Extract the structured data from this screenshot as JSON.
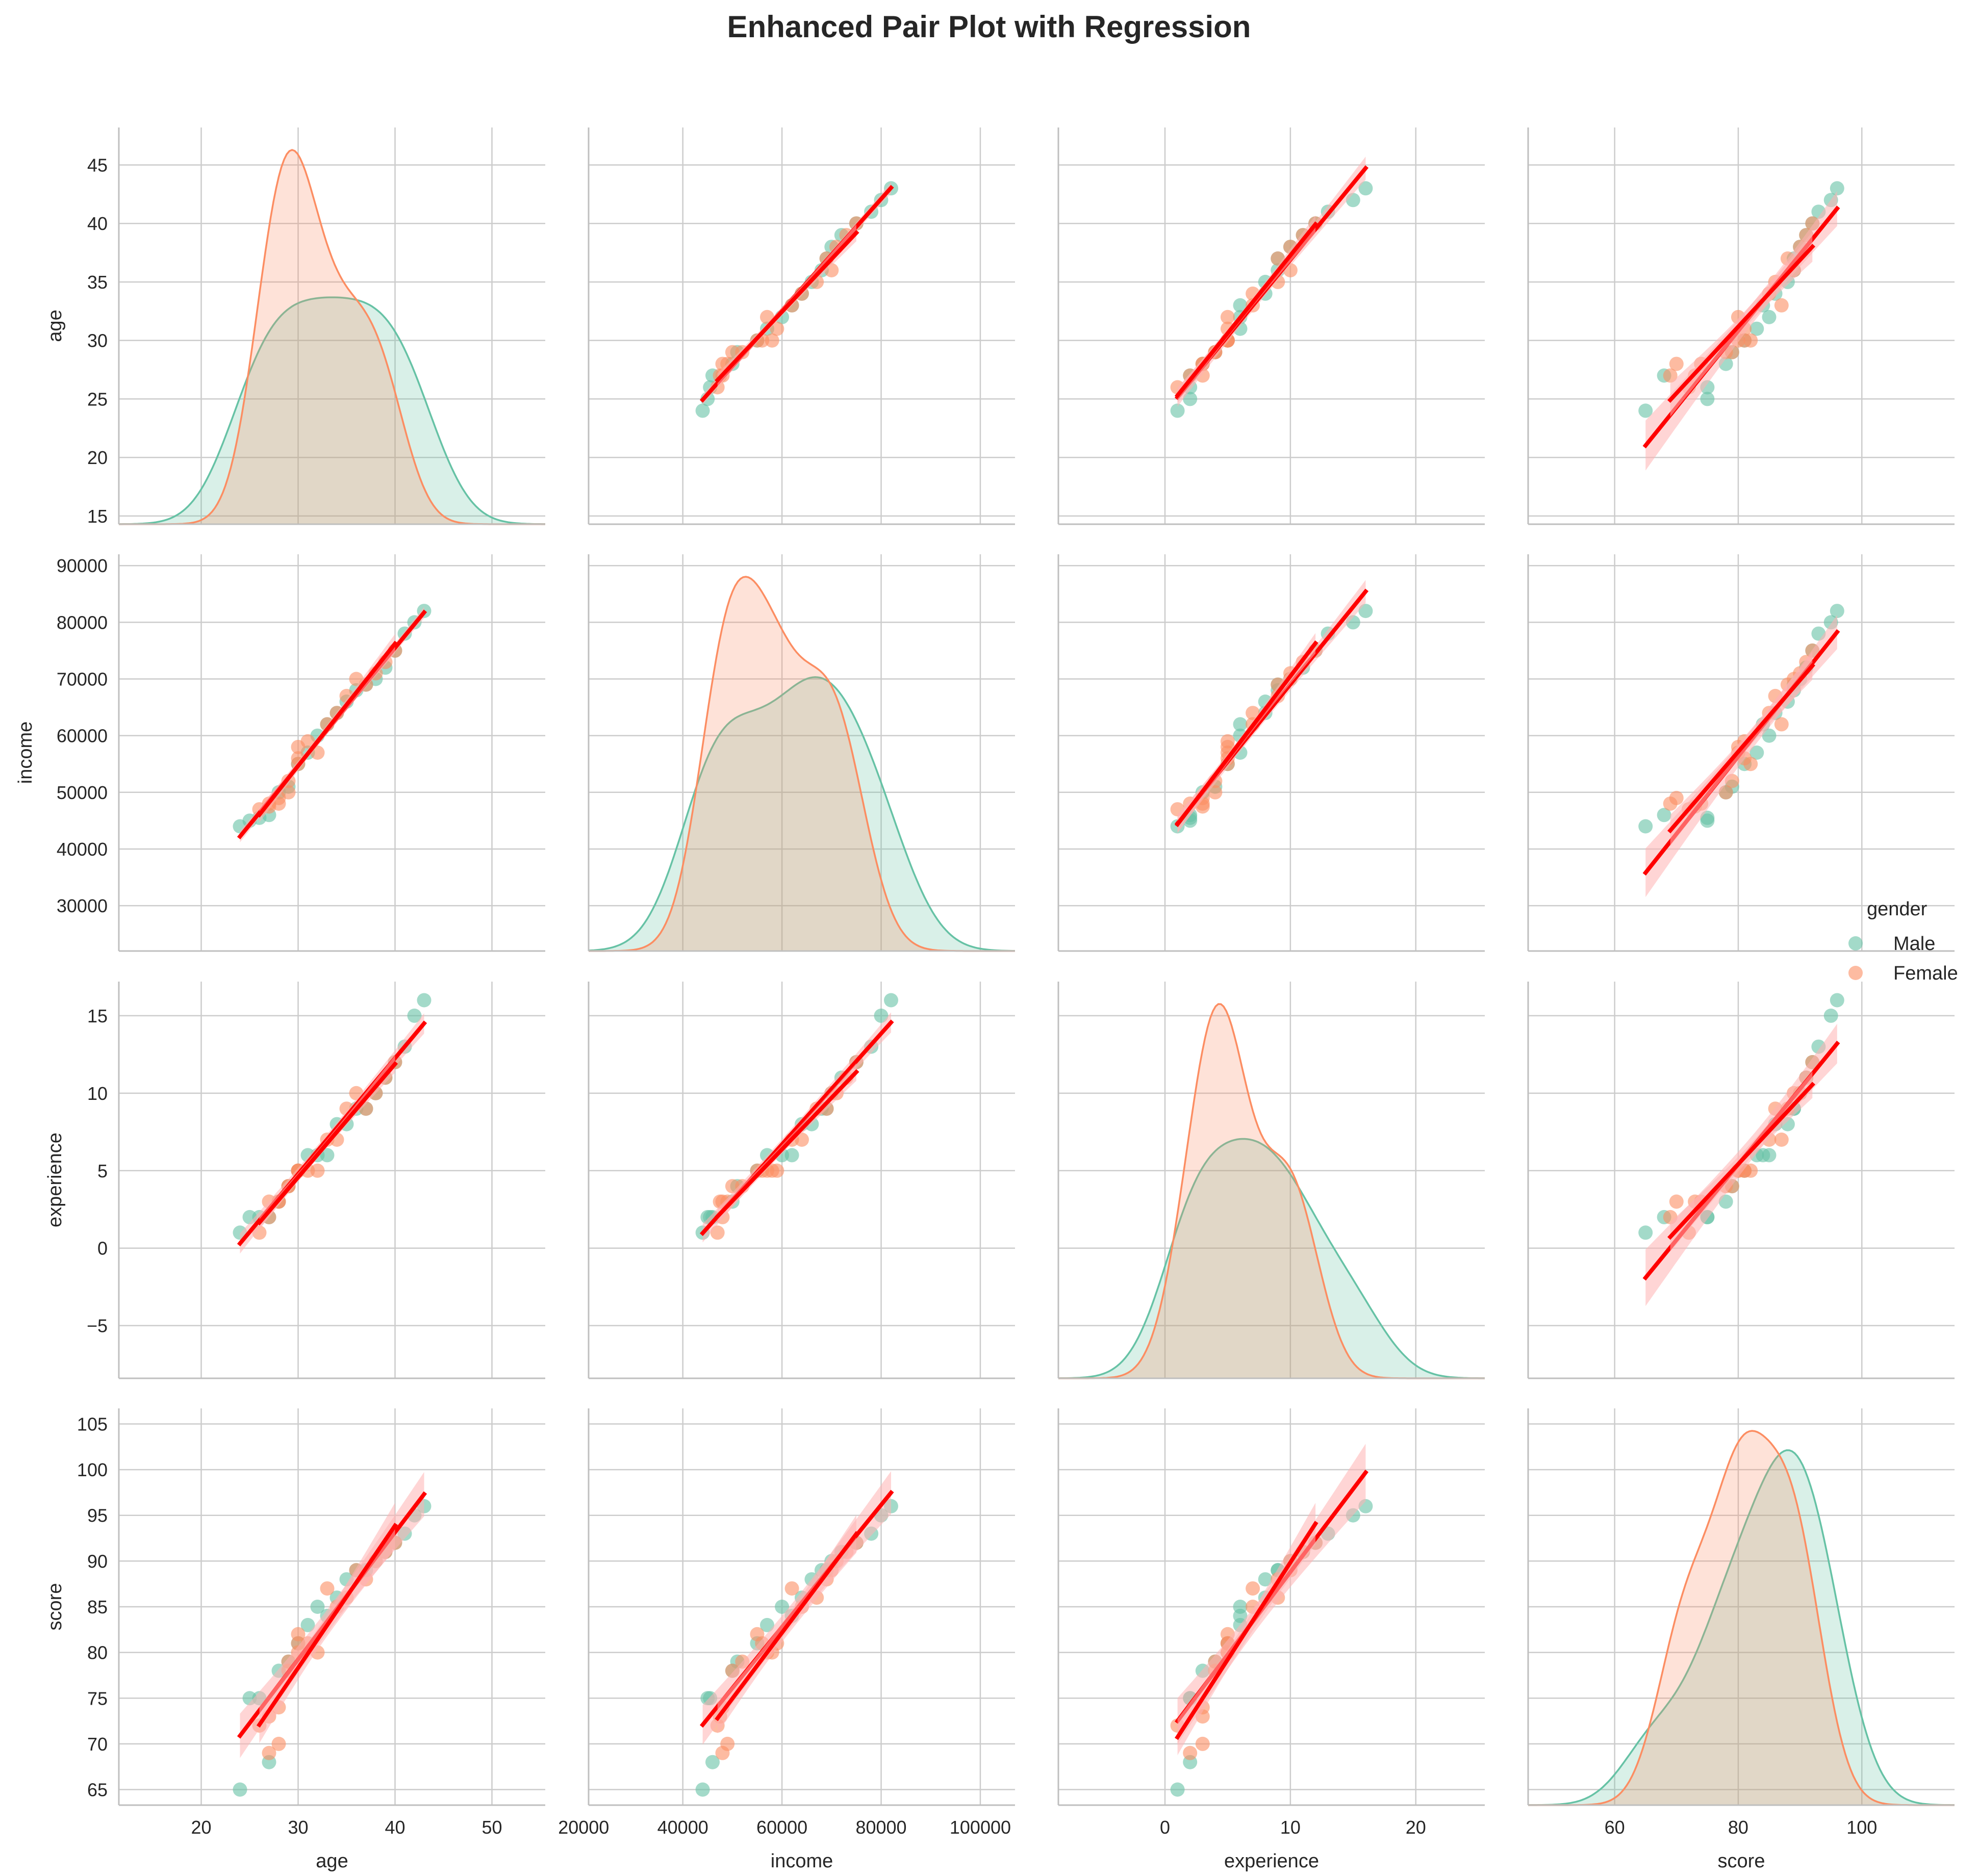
{
  "title": "Enhanced Pair Plot with Regression",
  "chart_data": {
    "type": "scatter",
    "kind": "pairplot",
    "variables": [
      "age",
      "income",
      "experience",
      "score"
    ],
    "axis_ticks": {
      "age": [
        20,
        30,
        40,
        50
      ],
      "income": [
        20000,
        40000,
        60000,
        80000,
        100000
      ],
      "experience": [
        0,
        10,
        20
      ],
      "score": [
        60,
        80,
        100
      ]
    },
    "y_axis_ticks": {
      "age": [
        15,
        20,
        25,
        30,
        35,
        40,
        45
      ],
      "income": [
        30000,
        40000,
        50000,
        60000,
        70000,
        80000,
        90000
      ],
      "experience": [
        -5,
        0,
        5,
        10,
        15
      ],
      "score": [
        65,
        70,
        75,
        80,
        85,
        90,
        95,
        100,
        105
      ]
    },
    "axis_ranges": {
      "age": [
        11.5,
        55.5
      ],
      "income": [
        21000,
        107000
      ],
      "experience": [
        -8.5,
        25.5
      ],
      "score": [
        46,
        115
      ]
    },
    "y_axis_ranges": {
      "age": [
        14.3,
        48.2
      ],
      "income": [
        22000,
        92000
      ],
      "experience": [
        -8.4,
        17.2
      ],
      "score": [
        63.3,
        106.7
      ]
    },
    "hue": "gender",
    "legend": {
      "title": "gender",
      "position": "right",
      "entries": [
        "Male",
        "Female"
      ]
    },
    "grid": true,
    "colors": {
      "Male": "#66c2a5",
      "Female": "#fc8d62",
      "regression": "#ff0000",
      "band": "#ffb3b3",
      "grid": "#cccccc",
      "axis": "#bfbfbf"
    },
    "series": [
      {
        "name": "Male",
        "age": [
          24,
          25,
          27,
          29,
          30,
          32,
          33,
          34,
          35,
          36,
          38,
          39,
          40,
          41,
          42,
          43,
          28,
          31,
          37,
          26
        ],
        "income": [
          44000,
          45000,
          46000,
          51000,
          55000,
          60000,
          62000,
          64000,
          66000,
          68000,
          70000,
          72000,
          75000,
          78000,
          80000,
          82000,
          50000,
          57000,
          69000,
          45500
        ],
        "experience": [
          1,
          2,
          2,
          4,
          5,
          6,
          6,
          8,
          8,
          9,
          10,
          11,
          12,
          13,
          15,
          16,
          3,
          6,
          9,
          2
        ],
        "score": [
          65,
          75,
          68,
          79,
          81,
          85,
          84,
          86,
          88,
          89,
          90,
          91,
          92,
          93,
          95,
          96,
          78,
          83,
          89,
          75
        ]
      },
      {
        "name": "Female",
        "age": [
          26,
          27,
          28,
          29,
          30,
          30,
          31,
          33,
          35,
          37,
          38,
          40,
          27,
          29,
          32,
          34,
          36,
          28,
          30,
          39
        ],
        "income": [
          47000,
          48000,
          49000,
          50000,
          55000,
          58000,
          59000,
          62000,
          67000,
          69000,
          71000,
          75000,
          47500,
          52000,
          57000,
          64000,
          70000,
          48000,
          56000,
          73000
        ],
        "experience": [
          1,
          2,
          3,
          4,
          5,
          5,
          5,
          7,
          9,
          9,
          10,
          12,
          3,
          4,
          5,
          7,
          10,
          3,
          5,
          11
        ],
        "score": [
          72,
          69,
          70,
          78,
          82,
          80,
          81,
          87,
          86,
          88,
          90,
          92,
          73,
          79,
          80,
          85,
          89,
          74,
          81,
          91
        ]
      }
    ],
    "regression": "linear fit per gender with 95% confidence band, drawn in red"
  }
}
